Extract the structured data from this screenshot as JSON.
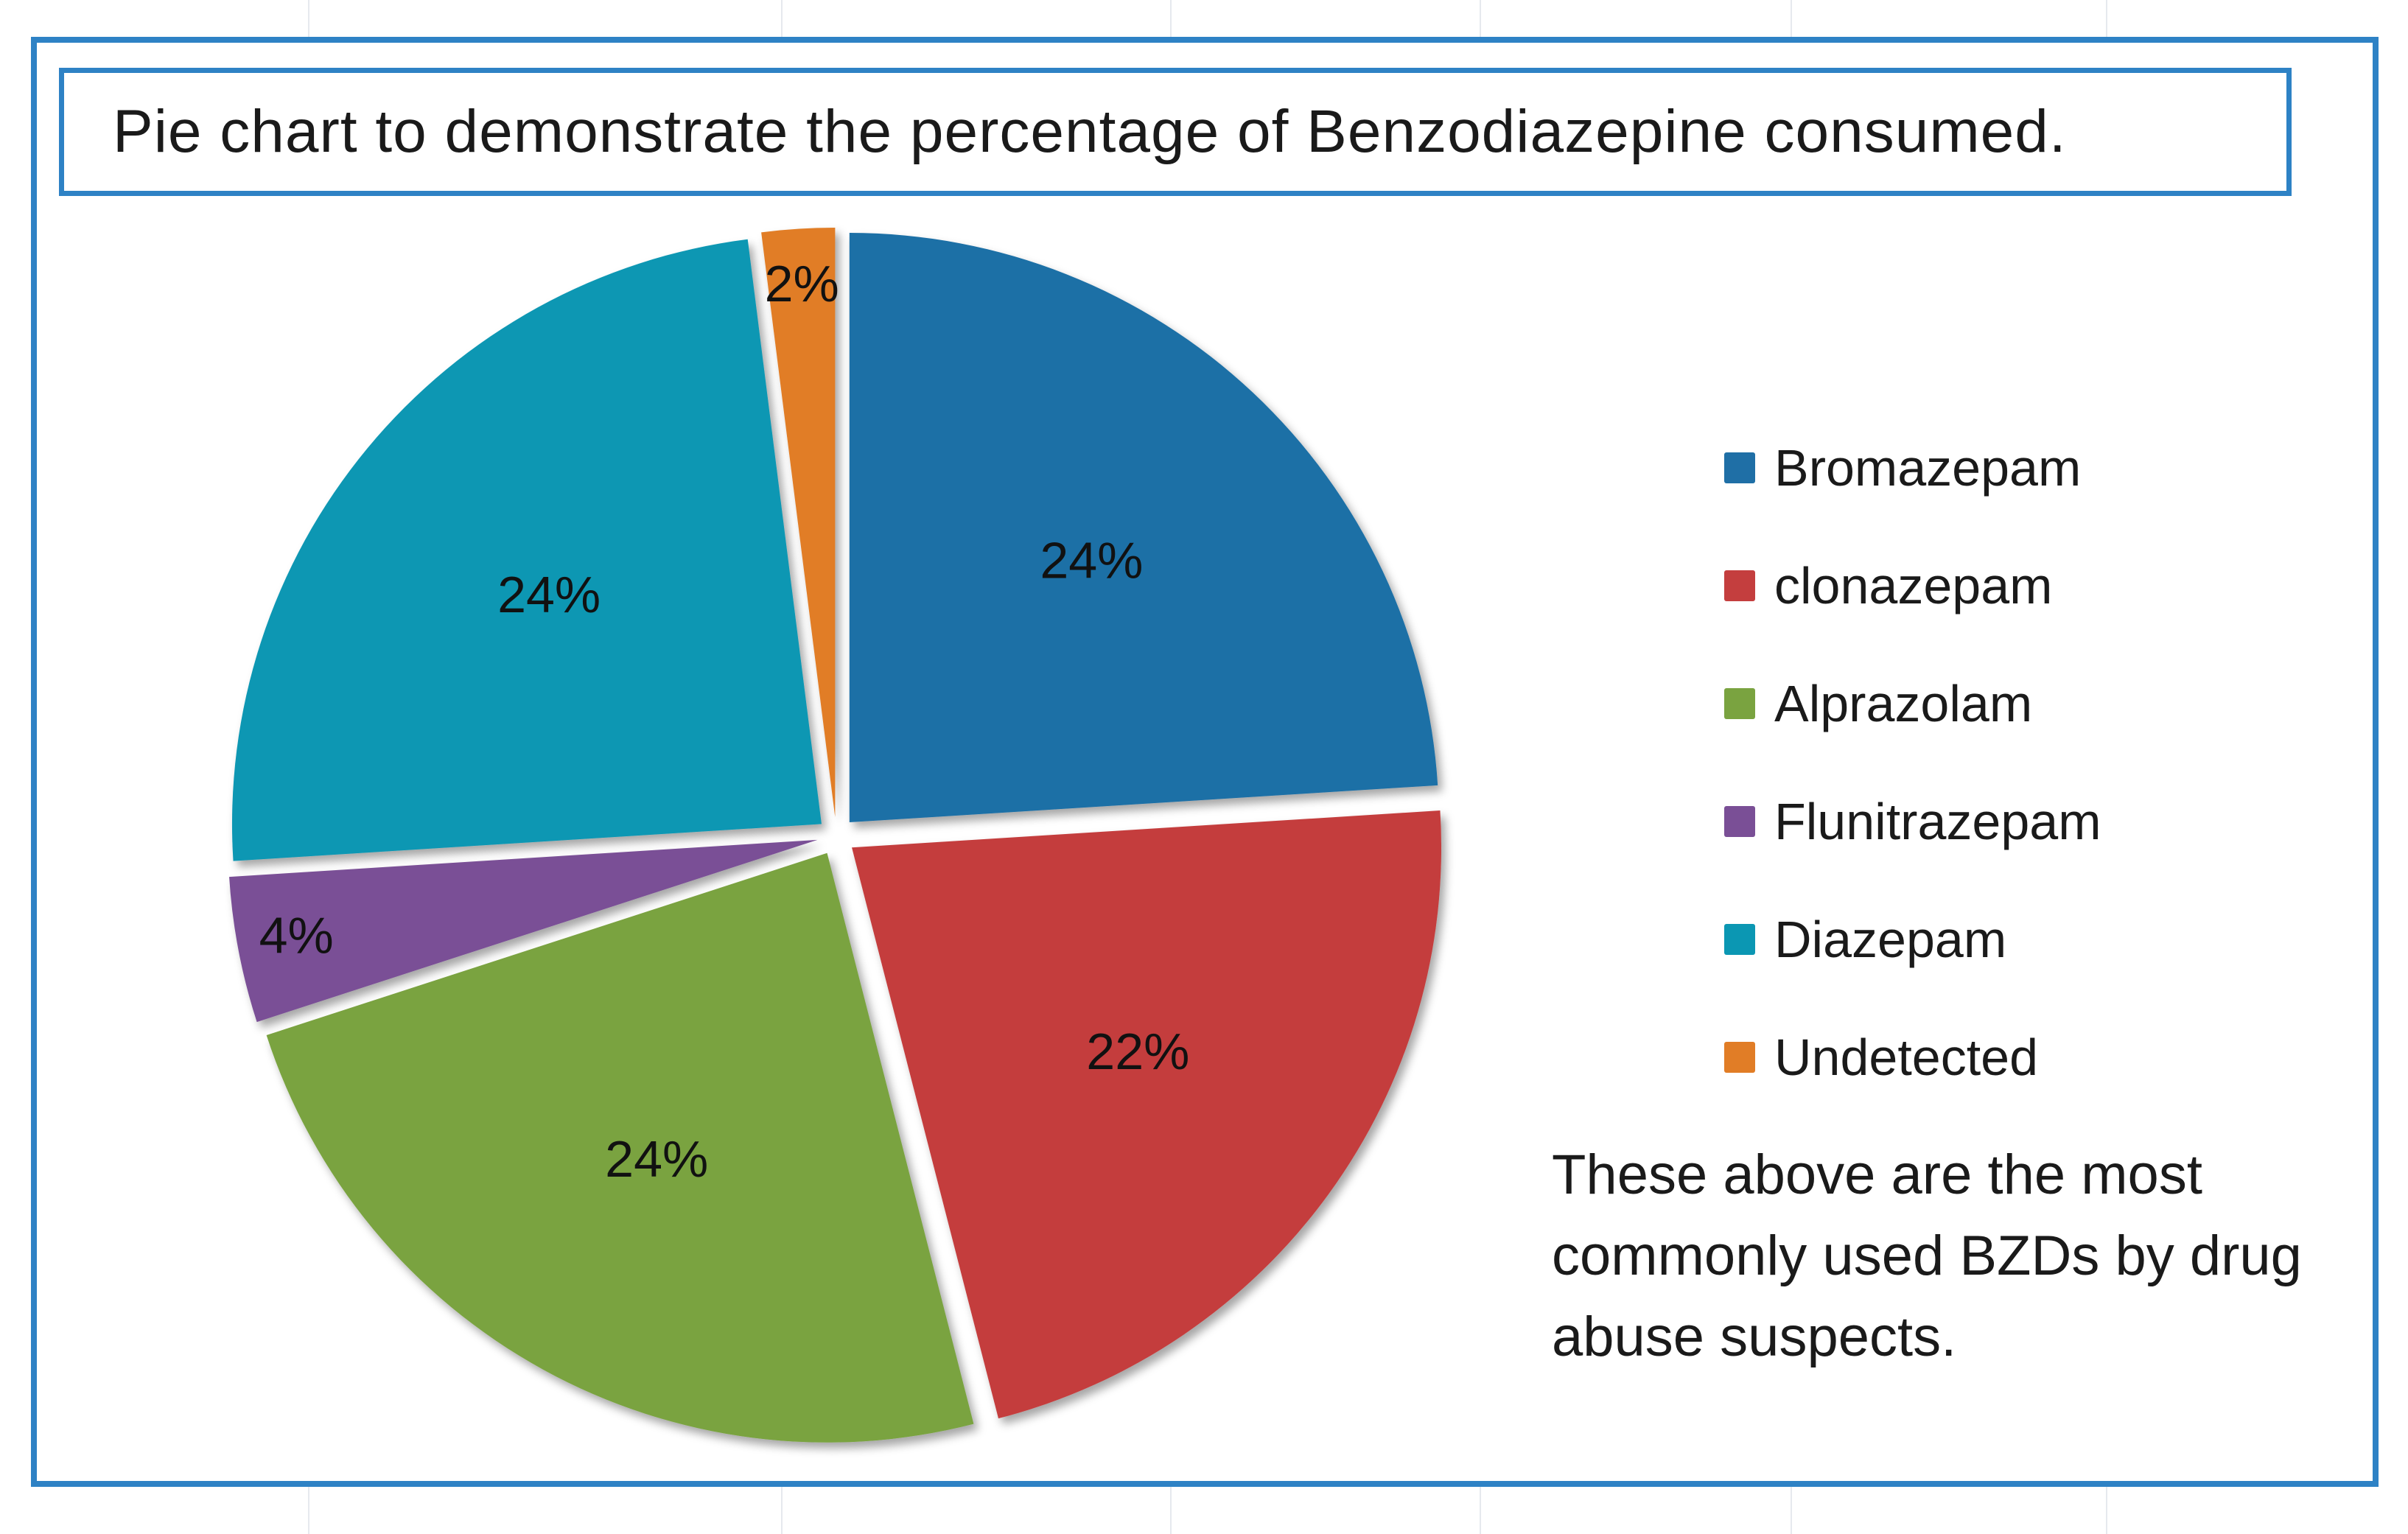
{
  "title": "Pie chart to demonstrate the percentage of Benzodiazepine consumed.",
  "note": "These above are the most commonly used BZDs by drug abuse suspects.",
  "chart_data": {
    "type": "pie",
    "title": "Pie chart to demonstrate the percentage of Benzodiazepine consumed.",
    "legend_position": "right",
    "slices": [
      {
        "name": "Bromazepam",
        "value": 24,
        "label": "24%",
        "color": "#1f6fa6"
      },
      {
        "name": "clonazepam",
        "value": 22,
        "label": "22%",
        "color": "#c43e3e"
      },
      {
        "name": "Alprazolam",
        "value": 24,
        "label": "24%",
        "color": "#7aa340"
      },
      {
        "name": "Flunitrazepam",
        "value": 4,
        "label": "4%",
        "color": "#7a4f96"
      },
      {
        "name": "Diazepam",
        "value": 24,
        "label": "24%",
        "color": "#0b97b3"
      },
      {
        "name": "Undetected",
        "value": 2,
        "label": "2%",
        "color": "#e17d26"
      }
    ]
  }
}
